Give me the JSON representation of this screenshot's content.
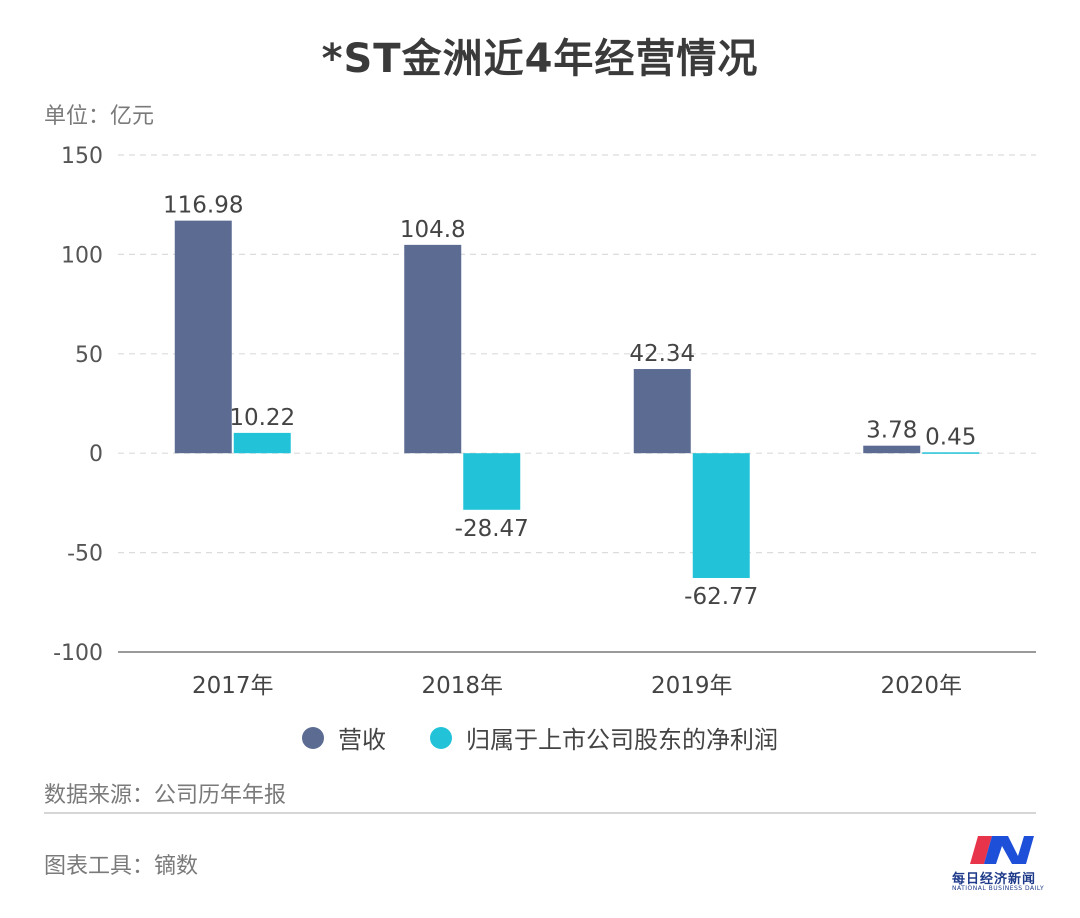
{
  "title": "*ST金洲近4年经营情况",
  "unit_label": "单位：亿元",
  "chart_data": {
    "type": "bar",
    "categories": [
      "2017年",
      "2018年",
      "2019年",
      "2020年"
    ],
    "series": [
      {
        "name": "营收",
        "values": [
          116.98,
          104.8,
          42.34,
          3.78
        ],
        "labels": [
          "116.98",
          "104.8",
          "42.34",
          "3.78"
        ],
        "color": "#5b6b92"
      },
      {
        "name": "归属于上市公司股东的净利润",
        "values": [
          10.22,
          -28.47,
          -62.77,
          0.45
        ],
        "labels": [
          "10.22",
          "-28.47",
          "-62.77",
          "0.45"
        ],
        "color": "#22c3d8"
      }
    ],
    "yticks": [
      "150",
      "100",
      "50",
      "0",
      "-50",
      "-100"
    ],
    "ylim": [
      -100,
      150
    ],
    "grid": true,
    "legend_position": "bottom"
  },
  "source_label": "数据来源：公司历年年报",
  "tool_label": "图表工具：镝数",
  "logo": {
    "text": "每日经济新闻",
    "subtext": "NATIONAL BUSINESS DAILY",
    "colors": [
      "#e8344a",
      "#1e4fd8"
    ]
  }
}
